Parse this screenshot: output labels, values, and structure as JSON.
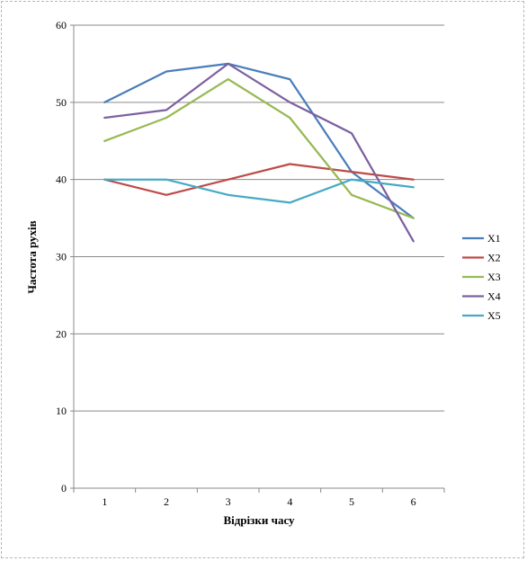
{
  "chart_data": {
    "type": "line",
    "categories": [
      "1",
      "2",
      "3",
      "4",
      "5",
      "6"
    ],
    "series": [
      {
        "name": "X1",
        "color": "#4a7ebb",
        "values": [
          50,
          54,
          55,
          53,
          41,
          35
        ]
      },
      {
        "name": "X2",
        "color": "#be4b48",
        "values": [
          40,
          38,
          40,
          42,
          41,
          40
        ]
      },
      {
        "name": "X3",
        "color": "#98b954",
        "values": [
          45,
          48,
          53,
          48,
          38,
          35
        ]
      },
      {
        "name": "X4",
        "color": "#7d60a0",
        "values": [
          48,
          49,
          55,
          50,
          46,
          32
        ]
      },
      {
        "name": "X5",
        "color": "#46aac5",
        "values": [
          40,
          40,
          38,
          37,
          40,
          39
        ]
      }
    ],
    "xlabel": "Відрізки часу",
    "ylabel": "Частота рухів",
    "ylim": [
      0,
      60
    ],
    "yticks": [
      0,
      10,
      20,
      30,
      40,
      50,
      60
    ],
    "grid": true,
    "legend_position": "right"
  }
}
